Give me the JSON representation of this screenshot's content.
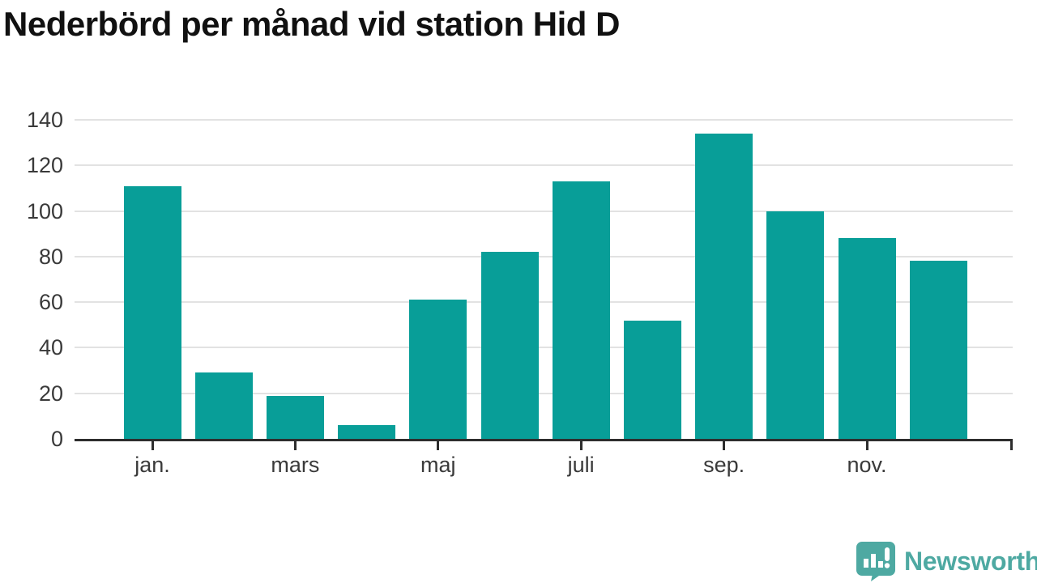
{
  "chart_data": {
    "type": "bar",
    "title": "Nederbörd per månad vid station Hid D",
    "xlabel": "",
    "ylabel": "",
    "values": [
      111,
      29,
      19,
      6,
      61,
      82,
      113,
      52,
      134,
      100,
      88,
      78
    ],
    "x_ticks": [
      {
        "bar_index": 0,
        "label": "jan."
      },
      {
        "bar_index": 2,
        "label": "mars"
      },
      {
        "bar_index": 4,
        "label": "maj"
      },
      {
        "bar_index": 6,
        "label": "juli"
      },
      {
        "bar_index": 8,
        "label": "sep."
      },
      {
        "bar_index": 10,
        "label": "nov."
      }
    ],
    "y_ticks": [
      0,
      20,
      40,
      60,
      80,
      100,
      120,
      140
    ],
    "ylim": [
      0,
      140
    ],
    "grid": "horizontal",
    "legend": "none"
  },
  "colors": {
    "bar": "#089e98",
    "axis": "#2d2d2d",
    "grid": "#e2e2e2",
    "tick_text": "#3a3a3a",
    "title_text": "#111111",
    "logo": "#4ea9a2",
    "background": "#ffffff"
  },
  "footer": {
    "brand": "Newsworthy",
    "logo_icon": "bar-chart-speech-bubble"
  }
}
